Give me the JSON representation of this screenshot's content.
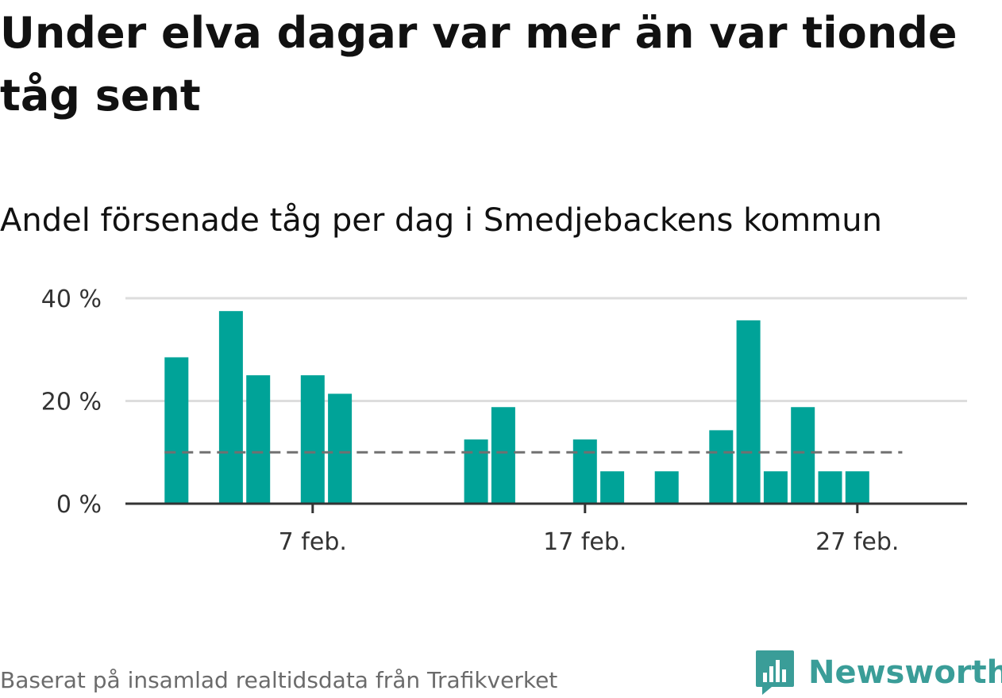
{
  "header": {
    "title": "Under elva dagar var mer än var tionde tåg sent",
    "subtitle": "Andel försenade tåg per dag i Smedjebackens kommun"
  },
  "footer": {
    "source": "Baserat på insamlad realtidsdata från Trafikverket",
    "brand": "Newsworthy"
  },
  "colors": {
    "bar": "#00a398",
    "reference_line": "#707070",
    "grid": "#dddddd",
    "axis": "#333333",
    "brand": "#3a9d98"
  },
  "icons": {
    "brand_logo": "newsworthy-logo-icon"
  },
  "chart_data": {
    "type": "bar",
    "x": [
      "2024-02-01",
      "2024-02-02",
      "2024-02-03",
      "2024-02-04",
      "2024-02-05",
      "2024-02-06",
      "2024-02-07",
      "2024-02-08",
      "2024-02-09",
      "2024-02-10",
      "2024-02-11",
      "2024-02-12",
      "2024-02-13",
      "2024-02-14",
      "2024-02-15",
      "2024-02-16",
      "2024-02-17",
      "2024-02-18",
      "2024-02-19",
      "2024-02-20",
      "2024-02-21",
      "2024-02-22",
      "2024-02-23",
      "2024-02-24",
      "2024-02-25",
      "2024-02-26",
      "2024-02-27",
      "2024-02-28",
      "2024-02-29"
    ],
    "values": [
      0,
      28.5,
      0,
      37.5,
      25,
      0,
      25,
      21.4,
      0,
      0,
      0,
      0,
      12.5,
      18.8,
      0,
      0,
      12.5,
      6.3,
      0,
      6.3,
      0,
      14.3,
      35.7,
      6.3,
      18.8,
      6.3,
      6.3,
      0,
      0
    ],
    "ylim": [
      0,
      40
    ],
    "yticks": [
      0,
      20,
      40
    ],
    "ytick_labels": [
      "0 %",
      "20 %",
      "40 %"
    ],
    "xticks": [
      "2024-02-07",
      "2024-02-17",
      "2024-02-27"
    ],
    "xtick_labels": [
      "7 feb.",
      "17 feb.",
      "27 feb."
    ],
    "reference_line": {
      "value": 10,
      "style": "dashed"
    },
    "grid": true,
    "legend": "none"
  }
}
